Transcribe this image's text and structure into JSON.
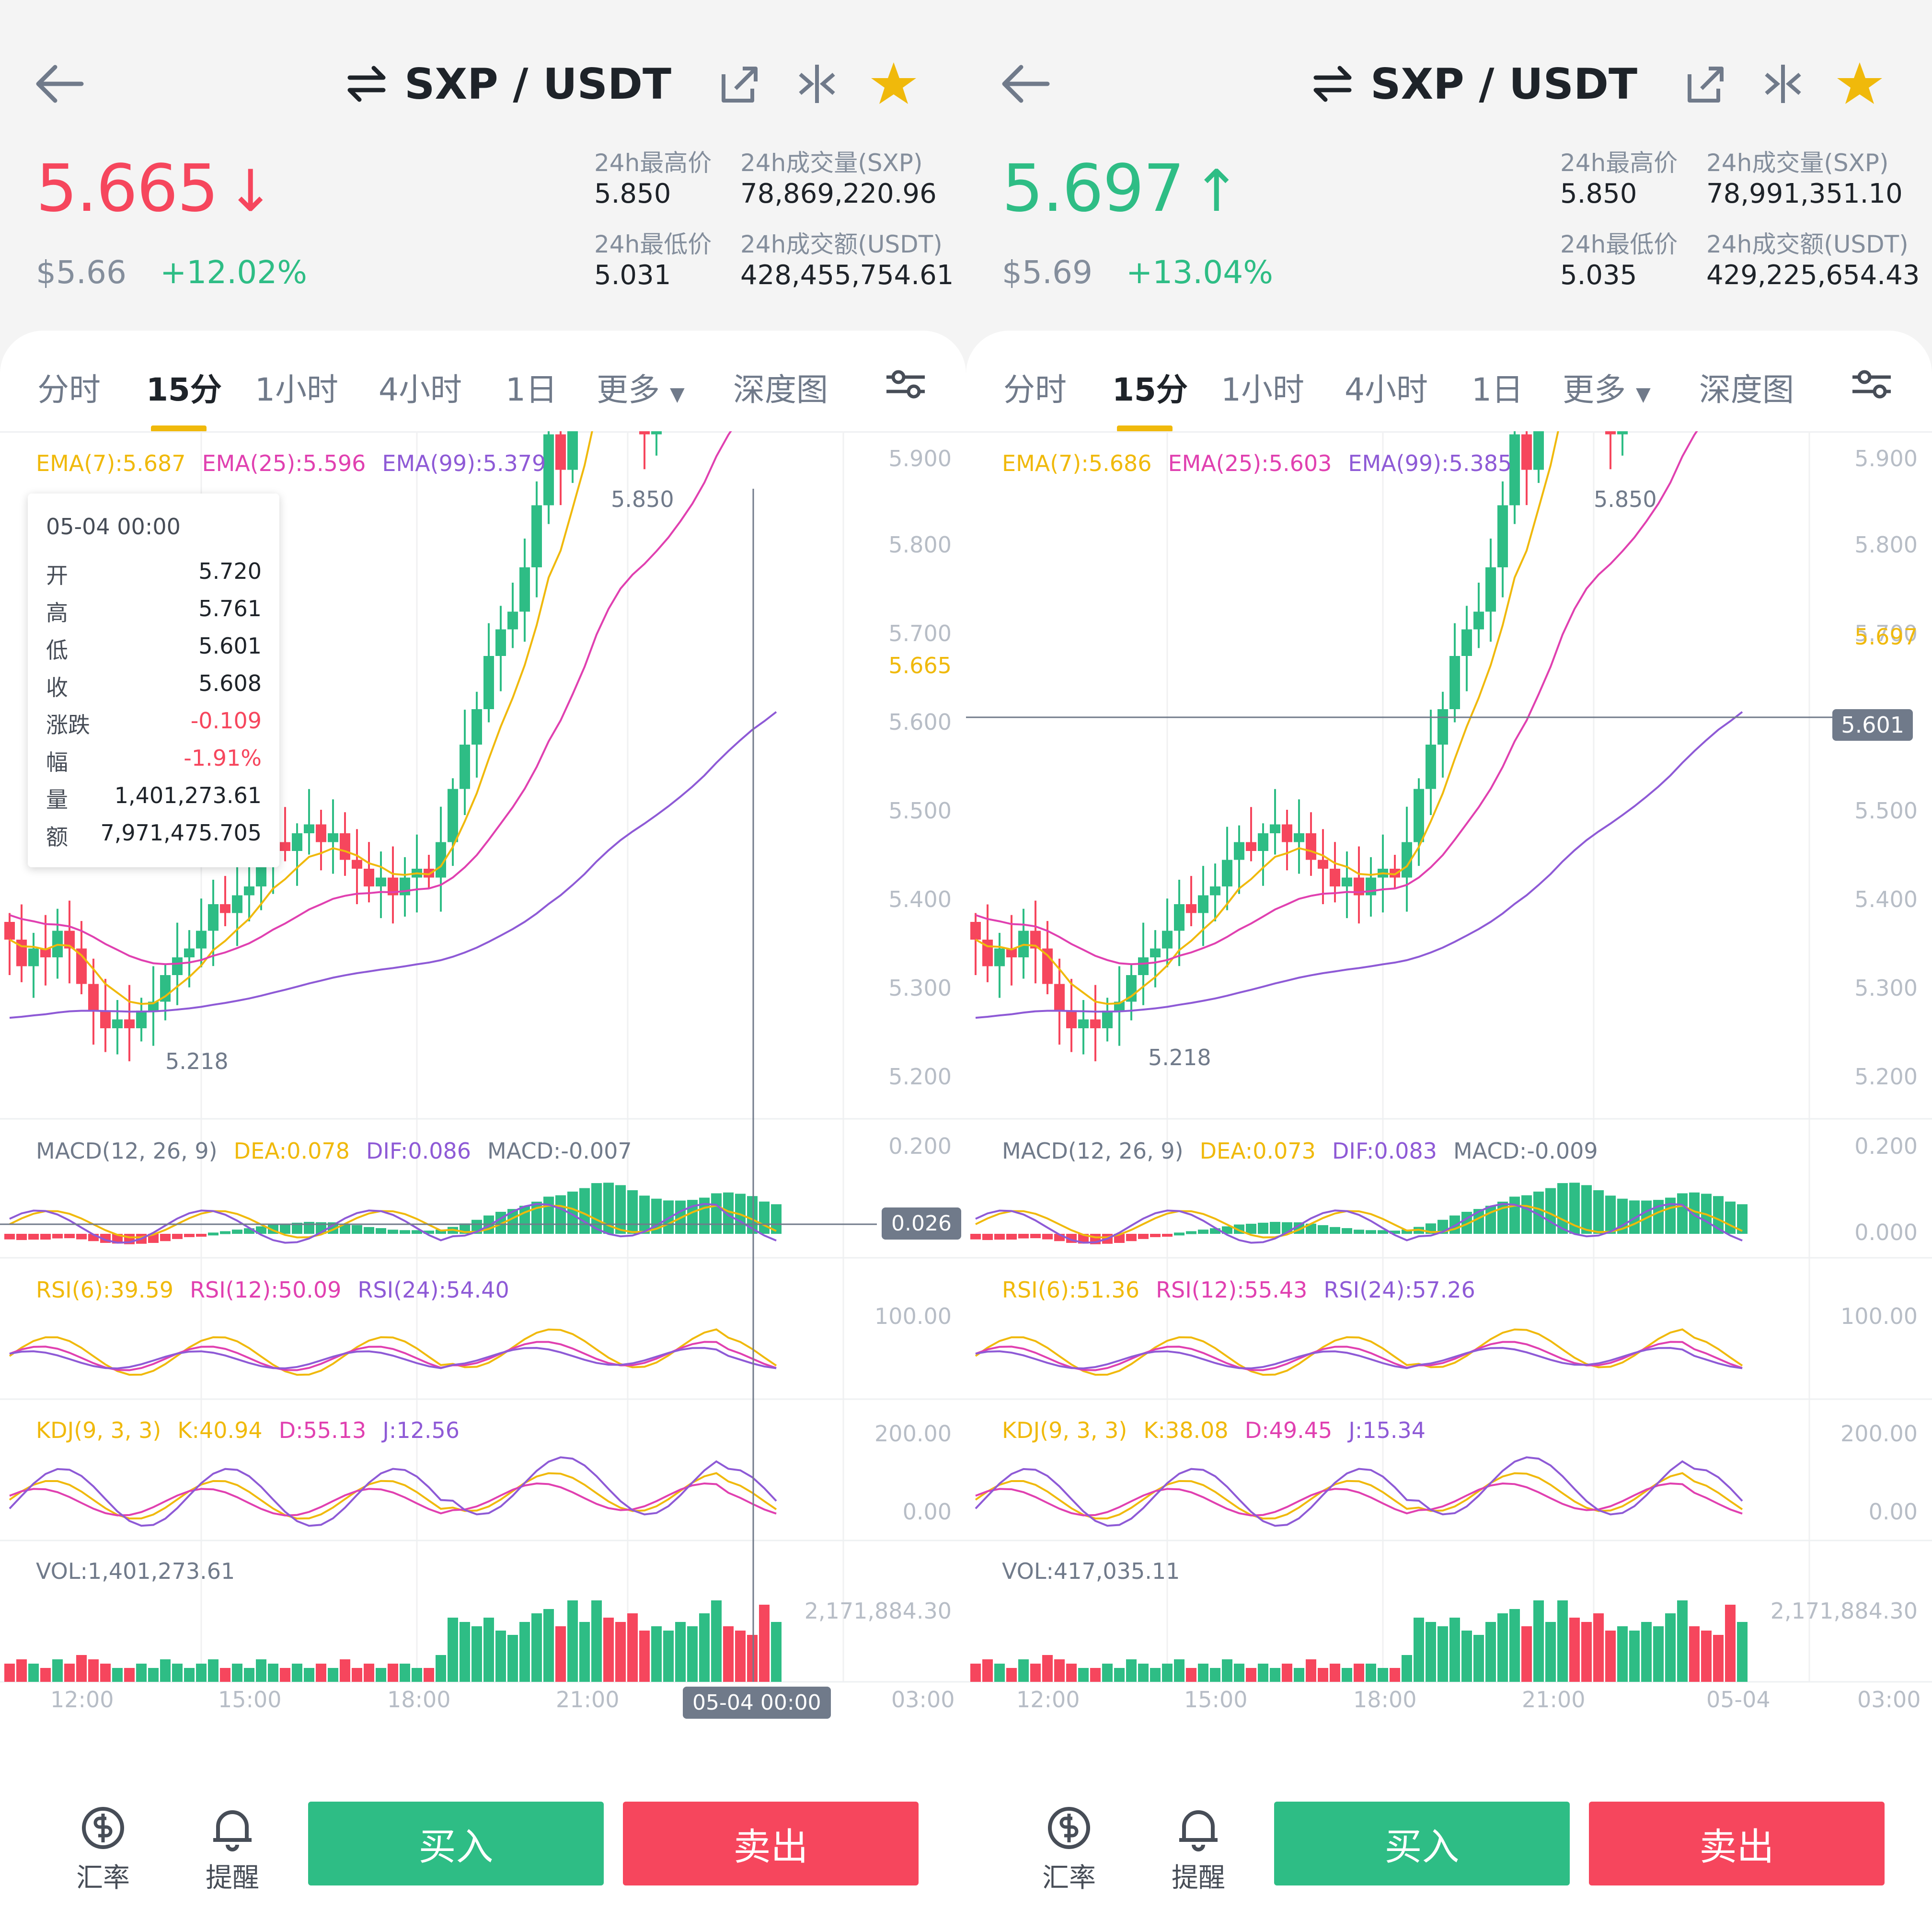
{
  "left": {
    "pair": "SXP / USDT",
    "price": "5.665",
    "price_arrow": "↓",
    "price_color": "#f6465d",
    "usd": "$5.66",
    "change": "+12.02%",
    "high_label": "24h最高价",
    "high": "5.850",
    "vol_sxp_label": "24h成交量(SXP)",
    "vol_sxp": "78,869,220.96",
    "low_label": "24h最低价",
    "low": "5.031",
    "vol_usdt_label": "24h成交额(USDT)",
    "vol_usdt": "428,455,754.61",
    "ema7": "EMA(7):5.687",
    "ema25": "EMA(25):5.596",
    "ema99": "EMA(99):5.379",
    "macd_title": "MACD(12, 26, 9)",
    "dea": "DEA:0.078",
    "dif": "DIF:0.086",
    "macd": "MACD:-0.007",
    "rsi6": "RSI(6):39.59",
    "rsi12": "RSI(12):50.09",
    "rsi24": "RSI(24):54.40",
    "kdj_title": "KDJ(9, 3, 3)",
    "k": "K:40.94",
    "d": "D:55.13",
    "j": "J:12.56",
    "vol": "VOL:1,401,273.61",
    "cur_price_tag": "5.665",
    "macd_marker": "0.026",
    "time_marker": "05-04 00:00",
    "tooltip": {
      "title": "05-04 00:00",
      "rows": [
        {
          "k": "开",
          "v": "5.720"
        },
        {
          "k": "高",
          "v": "5.761"
        },
        {
          "k": "低",
          "v": "5.601"
        },
        {
          "k": "收",
          "v": "5.608"
        },
        {
          "k": "涨跌",
          "v": "-0.109"
        },
        {
          "k": "幅",
          "v": "-1.91%"
        },
        {
          "k": "量",
          "v": "1,401,273.61"
        },
        {
          "k": "额",
          "v": "7,971,475.705"
        }
      ]
    },
    "high_mark": "5.850",
    "low_mark": "5.218"
  },
  "right": {
    "pair": "SXP / USDT",
    "price": "5.697",
    "price_arrow": "↑",
    "price_color": "#2ebd85",
    "usd": "$5.69",
    "change": "+13.04%",
    "high_label": "24h最高价",
    "high": "5.850",
    "vol_sxp_label": "24h成交量(SXP)",
    "vol_sxp": "78,991,351.10",
    "low_label": "24h最低价",
    "low": "5.035",
    "vol_usdt_label": "24h成交额(USDT)",
    "vol_usdt": "429,225,654.43",
    "ema7": "EMA(7):5.686",
    "ema25": "EMA(25):5.603",
    "ema99": "EMA(99):5.385",
    "macd_title": "MACD(12, 26, 9)",
    "dea": "DEA:0.073",
    "dif": "DIF:0.083",
    "macd": "MACD:-0.009",
    "rsi6": "RSI(6):51.36",
    "rsi12": "RSI(12):55.43",
    "rsi24": "RSI(24):57.26",
    "kdj_title": "KDJ(9, 3, 3)",
    "k": "K:38.08",
    "d": "D:49.45",
    "j": "J:15.34",
    "vol": "VOL:417,035.11",
    "cur_price_tag": "5.697",
    "price_marker": "5.601",
    "high_mark": "5.850",
    "low_mark": "5.218",
    "time_end": "05-04"
  },
  "tabs": [
    "分时",
    "15分",
    "1小时",
    "4小时",
    "1日",
    "更多",
    "深度图"
  ],
  "price_axis": [
    "5.900",
    "5.800",
    "5.700",
    "5.600",
    "5.500",
    "5.400",
    "5.300",
    "5.200"
  ],
  "macd_axis": [
    "0.200",
    "0.000"
  ],
  "rsi_axis": [
    "100.00"
  ],
  "kdj_axis": [
    "200.00",
    "0.00"
  ],
  "vol_axis": [
    "2,171,884.30"
  ],
  "time_axis": [
    "12:00",
    "15:00",
    "18:00",
    "21:00",
    "03:00"
  ],
  "bottom": {
    "rate_label": "汇率",
    "alert_label": "提醒",
    "buy_label": "买入",
    "sell_label": "卖出"
  },
  "colors": {
    "up": "#2ebd85",
    "down": "#f6465d",
    "accent": "#f0b90b",
    "ema25": "#e040b0",
    "ema99": "#8e5ad6"
  }
}
